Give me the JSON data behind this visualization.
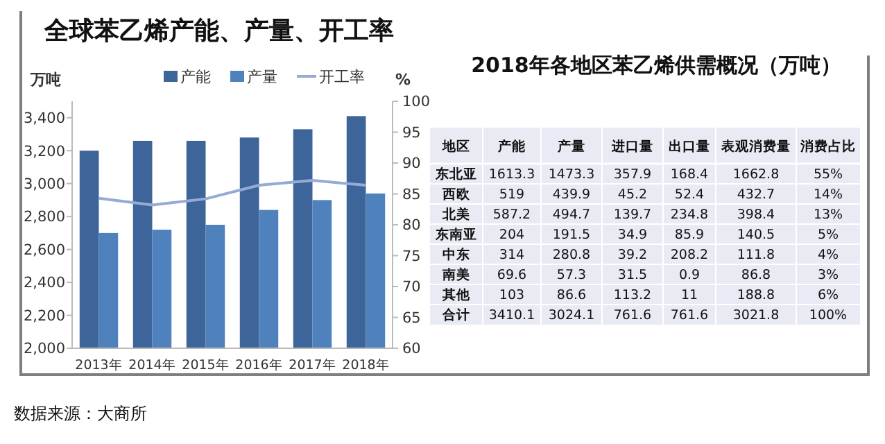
{
  "chart_data": [
    {
      "type": "bar",
      "title": "全球苯乙烯产能、产量、开工率",
      "ylabel": "万吨",
      "y2label": "%",
      "categories": [
        "2013年",
        "2014年",
        "2015年",
        "2016年",
        "2017年",
        "2018年"
      ],
      "series": [
        {
          "name": "产能",
          "color": "#3d6599",
          "values": [
            3200,
            3260,
            3260,
            3280,
            3330,
            3410
          ]
        },
        {
          "name": "产量",
          "color": "#4f81bd",
          "values": [
            2700,
            2720,
            2750,
            2840,
            2900,
            2940
          ]
        },
        {
          "name": "开工率",
          "type": "line",
          "axis": "y2",
          "color": "#95abd6",
          "values": [
            84.3,
            83.2,
            84.2,
            86.4,
            87.2,
            86.4
          ]
        }
      ],
      "ylim": [
        2000,
        3500
      ],
      "yticks": [
        {
          "value": 2000,
          "label": "2,000"
        },
        {
          "value": 2200,
          "label": "2,200"
        },
        {
          "value": 2400,
          "label": "2,400"
        },
        {
          "value": 2600,
          "label": "2,600"
        },
        {
          "value": 2800,
          "label": "2,800"
        },
        {
          "value": 3000,
          "label": "3,000"
        },
        {
          "value": 3200,
          "label": "3,200"
        },
        {
          "value": 3400,
          "label": "3,400"
        }
      ],
      "y2lim": [
        60,
        100
      ],
      "y2ticks": [
        60,
        65,
        70,
        75,
        80,
        85,
        90,
        95,
        100
      ],
      "grid": false,
      "legend": "top",
      "marker": "none",
      "annotations": [
        "数据来源：大商所"
      ]
    },
    {
      "type": "other",
      "title": "2018年各地区苯乙烯供需概况（万吨）",
      "categories": [
        "地区",
        "产能",
        "产量",
        "进口量",
        "出口量",
        "表观消费量",
        "消费占比"
      ],
      "cell_labels": [
        [
          "东北亚",
          "1613.3",
          "1473.3",
          "357.9",
          "168.4",
          "1662.8",
          "55%"
        ],
        [
          "西欧",
          "519",
          "439.9",
          "45.2",
          "52.4",
          "432.7",
          "14%"
        ],
        [
          "北美",
          "587.2",
          "494.7",
          "139.7",
          "234.8",
          "398.4",
          "13%"
        ],
        [
          "东南亚",
          "204",
          "191.5",
          "34.9",
          "85.9",
          "140.5",
          "5%"
        ],
        [
          "中东",
          "314",
          "280.8",
          "39.2",
          "208.2",
          "111.8",
          "4%"
        ],
        [
          "南美",
          "69.6",
          "57.3",
          "31.5",
          "0.9",
          "86.8",
          "3%"
        ],
        [
          "其他",
          "103",
          "86.6",
          "113.2",
          "11",
          "188.8",
          "6%"
        ],
        [
          "合计",
          "3410.1",
          "3024.1",
          "761.6",
          "761.6",
          "3021.8",
          "100%"
        ]
      ]
    }
  ]
}
